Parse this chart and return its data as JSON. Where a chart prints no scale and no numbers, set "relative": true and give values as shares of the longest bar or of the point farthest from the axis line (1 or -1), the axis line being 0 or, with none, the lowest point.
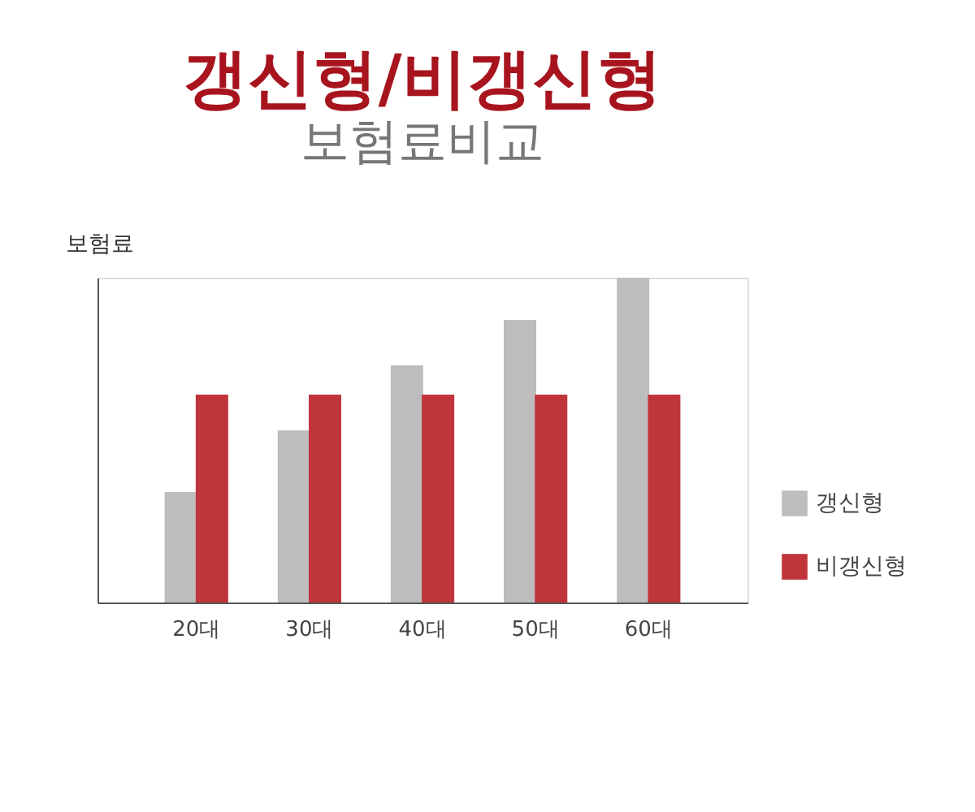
{
  "chart_data": {
    "type": "bar",
    "title": "갱신형/비갱신형",
    "subtitle": "보험료비교",
    "ylabel": "보험료",
    "relative": true,
    "categories": [
      "20대",
      "30대",
      "40대",
      "50대",
      "60대"
    ],
    "series": [
      {
        "name": "갱신형",
        "color": "#bdbdbd",
        "values": [
          0.34,
          0.53,
          0.73,
          0.87,
          1
        ]
      },
      {
        "name": "비갱신형",
        "color": "#c0353a",
        "values": [
          0.64,
          0.64,
          0.64,
          0.64,
          0.64
        ]
      }
    ],
    "legend": "bottom right",
    "grid": false
  }
}
